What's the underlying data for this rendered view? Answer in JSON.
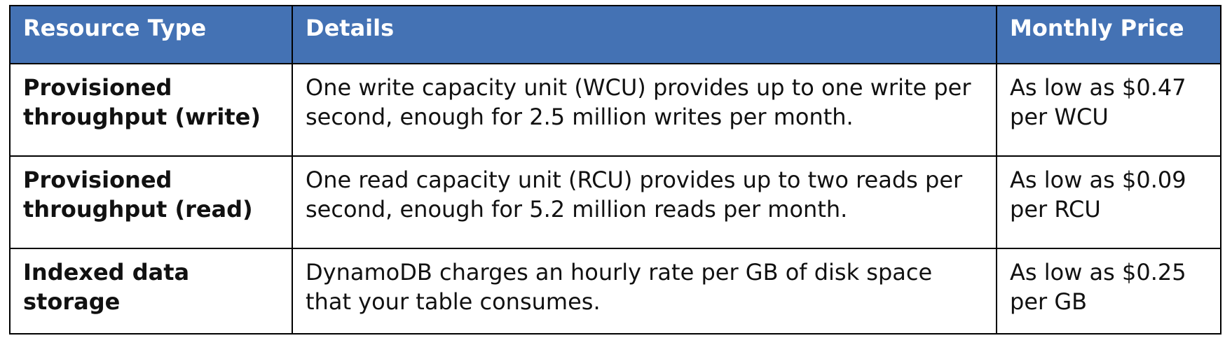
{
  "table": {
    "headers": [
      "Resource Type",
      "Details",
      "Monthly Price"
    ],
    "rows": [
      {
        "resource": "Provisioned throughput (write)",
        "details": "One write capacity unit (WCU) provides up to one write per second, enough for 2.5 million writes per month.",
        "price": "As low as $0.47 per WCU"
      },
      {
        "resource": "Provisioned throughput (read)",
        "details": "One read capacity unit (RCU) provides up to two reads per second, enough for 5.2 million reads per month.",
        "price": "As low as $0.09 per RCU"
      },
      {
        "resource": "Indexed data storage",
        "details": "DynamoDB charges an hourly rate per GB of disk space that your table consumes.",
        "price": "As low as $0.25 per GB"
      }
    ]
  },
  "colors": {
    "header_background": "#4472b4",
    "header_text": "#ffffff",
    "border": "#000000"
  }
}
